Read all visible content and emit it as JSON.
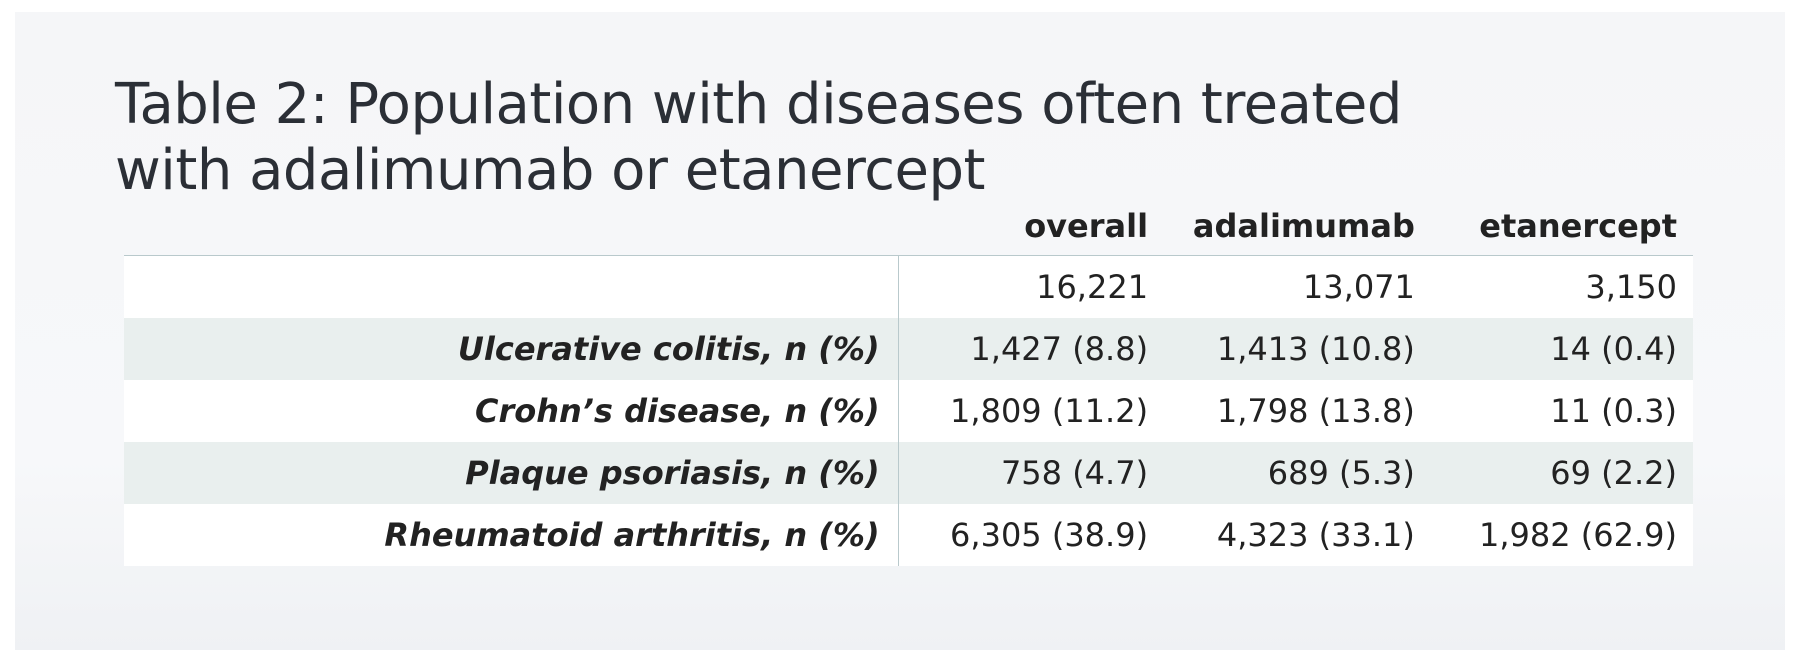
{
  "title": "Table 2: Population with diseases often treated with adalimumab or etanercept",
  "table": {
    "columns": [
      "overall",
      "adalimumab",
      "etanercept"
    ],
    "rows": [
      {
        "label": "",
        "values": [
          "16,221",
          "13,071",
          "3,150"
        ]
      },
      {
        "label": "Ulcerative colitis, n (%)",
        "values": [
          "1,427 (8.8)",
          "1,413 (10.8)",
          "14 (0.4)"
        ]
      },
      {
        "label": "Crohn’s disease, n (%)",
        "values": [
          "1,809 (11.2)",
          "1,798 (13.8)",
          "11 (0.3)"
        ]
      },
      {
        "label": "Plaque psoriasis, n (%)",
        "values": [
          "758 (4.7)",
          "689 (5.3)",
          "69 (2.2)"
        ]
      },
      {
        "label": "Rheumatoid arthritis, n (%)",
        "values": [
          "6,305 (38.9)",
          "4,323 (33.1)",
          "1,982 (62.9)"
        ]
      }
    ]
  }
}
